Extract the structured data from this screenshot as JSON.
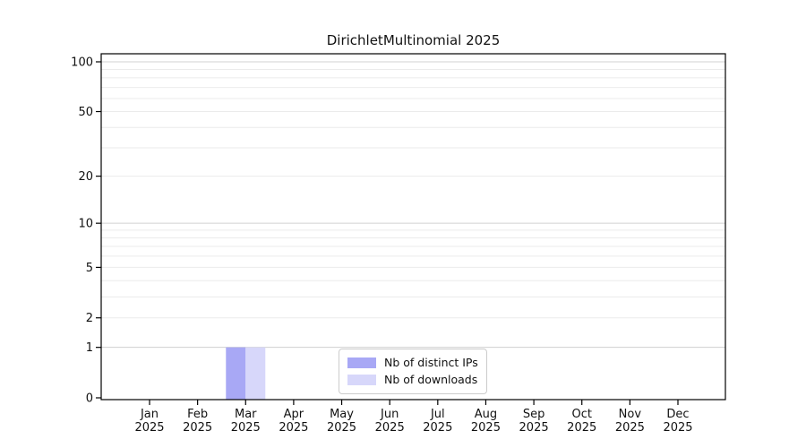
{
  "chart_data": {
    "type": "bar",
    "title": "DirichletMultinomial 2025",
    "categories": [
      "Jan 2025",
      "Feb 2025",
      "Mar 2025",
      "Apr 2025",
      "May 2025",
      "Jun 2025",
      "Jul 2025",
      "Aug 2025",
      "Sep 2025",
      "Oct 2025",
      "Nov 2025",
      "Dec 2025"
    ],
    "series": [
      {
        "name": "Nb of distinct IPs",
        "color": "#a8a8f5",
        "values": [
          0,
          0,
          1,
          0,
          0,
          0,
          0,
          0,
          0,
          0,
          0,
          0
        ]
      },
      {
        "name": "Nb of downloads",
        "color": "#d7d7fa",
        "values": [
          0,
          0,
          1,
          0,
          0,
          0,
          0,
          0,
          0,
          0,
          0,
          0
        ]
      }
    ],
    "xlabel": "",
    "ylabel": "",
    "yscale": "log1p",
    "ylim": [
      0,
      112
    ],
    "yticks": [
      0,
      1,
      2,
      5,
      10,
      20,
      50,
      100
    ],
    "minor_gridlines": [
      2,
      3,
      4,
      5,
      6,
      7,
      8,
      9,
      20,
      30,
      40,
      50,
      60,
      70,
      80,
      90
    ],
    "major_gridlines": [
      1,
      10,
      100
    ],
    "grid": "horizontal",
    "legend_position": "bottom-center",
    "colors": {
      "axis": "#000000",
      "major_grid": "#d0d0d0",
      "minor_grid": "#ebebeb",
      "tick_label": "#111111"
    }
  }
}
